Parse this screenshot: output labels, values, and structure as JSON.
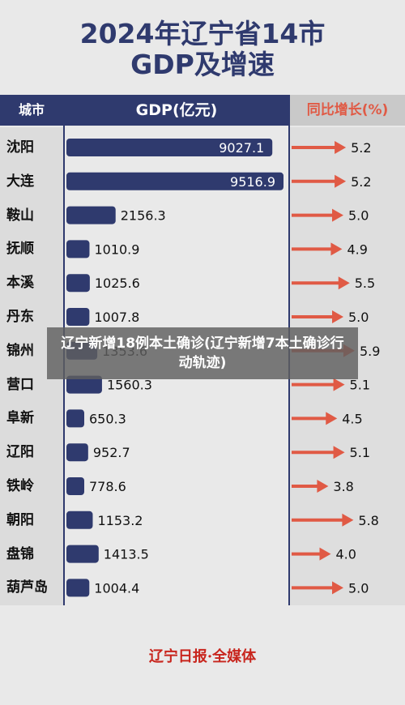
{
  "title_line1": "2024年辽宁省14市",
  "title_line2": "GDP及增速",
  "headers": {
    "city": "城市",
    "gdp": "GDP(亿元)",
    "growth": "同比增长(%)"
  },
  "banner": "辽宁新增18例本土确诊(辽宁新增7本土确诊行动轨迹)",
  "footer": "辽宁日报·全媒体",
  "colors": {
    "bar": "#2f3a6e",
    "arrow": "#e05a45",
    "header": "#2f3a6e"
  },
  "chart_data": {
    "type": "bar",
    "categories": [
      "沈阳",
      "大连",
      "鞍山",
      "抚顺",
      "本溪",
      "丹东",
      "锦州",
      "营口",
      "阜新",
      "辽阳",
      "铁岭",
      "朝阳",
      "盘锦",
      "葫芦岛"
    ],
    "series": [
      {
        "name": "GDP(亿元)",
        "values": [
          9027.1,
          9516.9,
          2156.3,
          1010.9,
          1025.6,
          1007.8,
          1353.6,
          1560.3,
          650.3,
          952.7,
          778.6,
          1153.2,
          1413.5,
          1004.4
        ]
      },
      {
        "name": "同比增长(%)",
        "values": [
          5.2,
          5.2,
          5.0,
          4.9,
          5.5,
          5.0,
          5.9,
          5.1,
          4.5,
          5.1,
          3.8,
          5.8,
          4.0,
          5.0
        ]
      }
    ],
    "labels_gdp": [
      "9027.1",
      "9516.9",
      "2156.3",
      "1010.9",
      "1025.6",
      "1007.8",
      "1353.6",
      "1560.3",
      "650.3",
      "952.7",
      "778.6",
      "1153.2",
      "1413.5",
      "1004.4"
    ],
    "labels_growth": [
      "5.2",
      "5.2",
      "5.0",
      "4.9",
      "5.5",
      "5.0",
      "5.9",
      "5.1",
      "4.5",
      "5.1",
      "3.8",
      "5.8",
      "4.0",
      "5.0"
    ]
  }
}
